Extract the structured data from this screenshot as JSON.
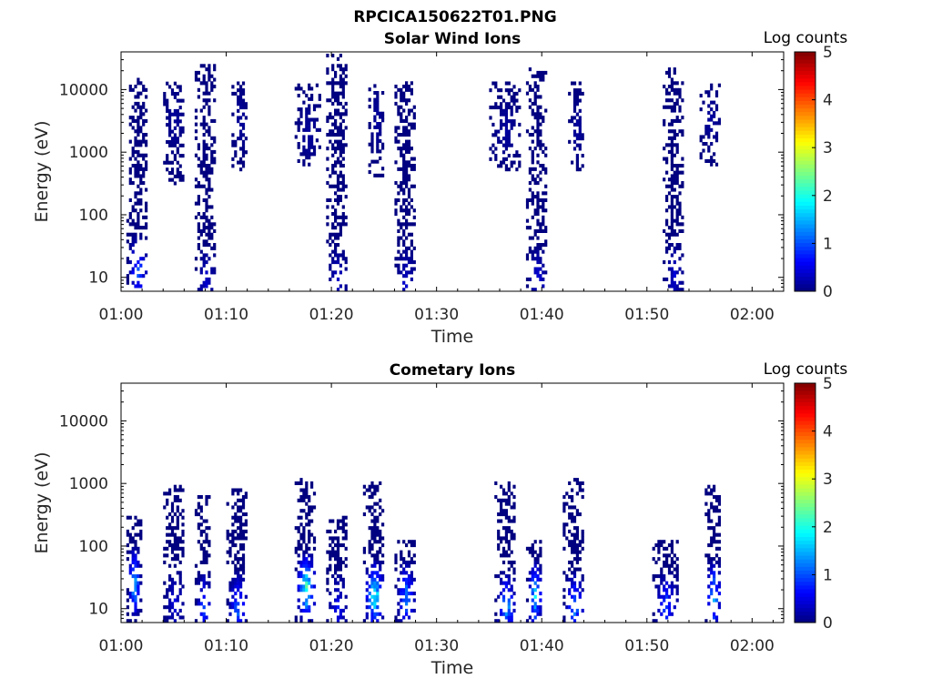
{
  "figure_title": "RPCICA150622T01.PNG",
  "chart_data": [
    {
      "type": "heatmap",
      "title": "Solar Wind Ions",
      "xlabel": "Time",
      "ylabel": "Energy (eV)",
      "x_ticks": [
        "01:00",
        "01:10",
        "01:20",
        "01:30",
        "01:40",
        "01:50",
        "02:00"
      ],
      "x_range": [
        "01:00",
        "02:03"
      ],
      "y_ticks": [
        "10",
        "100",
        "1000",
        "10000"
      ],
      "y_scale": "log",
      "y_range": [
        6,
        40000
      ],
      "colorbar": {
        "label": "Log counts",
        "ticks": [
          "0",
          "1",
          "2",
          "3",
          "4",
          "5"
        ],
        "range": [
          0,
          5
        ],
        "colormap": "jet"
      },
      "bursts": [
        {
          "t_start": 0.5,
          "t_end": 2.5,
          "e_min": 6,
          "e_max": 15000,
          "peak_log_counts": 1.3,
          "peak_energy": 12
        },
        {
          "t_start": 4.0,
          "t_end": 6.0,
          "e_min": 300,
          "e_max": 12000,
          "peak_log_counts": 0.2,
          "peak_energy": 3000
        },
        {
          "t_start": 7.0,
          "t_end": 9.0,
          "e_min": 6,
          "e_max": 25000,
          "peak_log_counts": 0.5,
          "peak_energy": 8
        },
        {
          "t_start": 10.5,
          "t_end": 12.0,
          "e_min": 500,
          "e_max": 12000,
          "peak_log_counts": 0.2,
          "peak_energy": 3000
        },
        {
          "t_start": 16.5,
          "t_end": 19.0,
          "e_min": 600,
          "e_max": 12000,
          "peak_log_counts": 0.2,
          "peak_energy": 2000
        },
        {
          "t_start": 19.5,
          "t_end": 21.5,
          "e_min": 6,
          "e_max": 35000,
          "peak_log_counts": 0.5,
          "peak_energy": 8
        },
        {
          "t_start": 23.5,
          "t_end": 25.0,
          "e_min": 400,
          "e_max": 12000,
          "peak_log_counts": 0.2,
          "peak_energy": 3000
        },
        {
          "t_start": 26.0,
          "t_end": 28.0,
          "e_min": 6,
          "e_max": 12000,
          "peak_log_counts": 0.5,
          "peak_energy": 8
        },
        {
          "t_start": 35.0,
          "t_end": 38.0,
          "e_min": 500,
          "e_max": 12000,
          "peak_log_counts": 0.2,
          "peak_energy": 2000
        },
        {
          "t_start": 38.5,
          "t_end": 40.5,
          "e_min": 6,
          "e_max": 20000,
          "peak_log_counts": 0.6,
          "peak_energy": 8
        },
        {
          "t_start": 42.5,
          "t_end": 44.0,
          "e_min": 500,
          "e_max": 12000,
          "peak_log_counts": 0.2,
          "peak_energy": 2000
        },
        {
          "t_start": 51.5,
          "t_end": 53.5,
          "e_min": 6,
          "e_max": 20000,
          "peak_log_counts": 0.5,
          "peak_energy": 10
        },
        {
          "t_start": 55.0,
          "t_end": 57.0,
          "e_min": 600,
          "e_max": 12000,
          "peak_log_counts": 0.2,
          "peak_energy": 3000
        }
      ]
    },
    {
      "type": "heatmap",
      "title": "Cometary Ions",
      "xlabel": "Time",
      "ylabel": "Energy (eV)",
      "x_ticks": [
        "01:00",
        "01:10",
        "01:20",
        "01:30",
        "01:40",
        "01:50",
        "02:00"
      ],
      "x_range": [
        "01:00",
        "02:03"
      ],
      "y_ticks": [
        "10",
        "100",
        "1000",
        "10000"
      ],
      "y_scale": "log",
      "y_range": [
        6,
        40000
      ],
      "colorbar": {
        "label": "Log counts",
        "ticks": [
          "0",
          "1",
          "2",
          "3",
          "4",
          "5"
        ],
        "range": [
          0,
          5
        ],
        "colormap": "jet"
      },
      "bursts": [
        {
          "t_start": 0.5,
          "t_end": 1.8,
          "e_min": 6,
          "e_max": 300,
          "peak_log_counts": 2.4,
          "peak_energy": 25
        },
        {
          "t_start": 4.0,
          "t_end": 6.0,
          "e_min": 6,
          "e_max": 900,
          "peak_log_counts": 0.6,
          "peak_energy": 12
        },
        {
          "t_start": 7.0,
          "t_end": 8.5,
          "e_min": 6,
          "e_max": 600,
          "peak_log_counts": 1.3,
          "peak_energy": 10
        },
        {
          "t_start": 10.0,
          "t_end": 12.0,
          "e_min": 6,
          "e_max": 800,
          "peak_log_counts": 1.4,
          "peak_energy": 10
        },
        {
          "t_start": 16.5,
          "t_end": 18.5,
          "e_min": 6,
          "e_max": 1200,
          "peak_log_counts": 2.7,
          "peak_energy": 20
        },
        {
          "t_start": 19.5,
          "t_end": 21.5,
          "e_min": 6,
          "e_max": 300,
          "peak_log_counts": 0.8,
          "peak_energy": 10
        },
        {
          "t_start": 23.0,
          "t_end": 25.0,
          "e_min": 6,
          "e_max": 1000,
          "peak_log_counts": 2.6,
          "peak_energy": 15
        },
        {
          "t_start": 26.0,
          "t_end": 28.0,
          "e_min": 6,
          "e_max": 120,
          "peak_log_counts": 1.6,
          "peak_energy": 15
        },
        {
          "t_start": 35.5,
          "t_end": 37.5,
          "e_min": 6,
          "e_max": 1000,
          "peak_log_counts": 1.9,
          "peak_energy": 10
        },
        {
          "t_start": 38.5,
          "t_end": 40.0,
          "e_min": 6,
          "e_max": 120,
          "peak_log_counts": 2.2,
          "peak_energy": 15
        },
        {
          "t_start": 42.0,
          "t_end": 44.0,
          "e_min": 6,
          "e_max": 1100,
          "peak_log_counts": 1.7,
          "peak_energy": 10
        },
        {
          "t_start": 50.5,
          "t_end": 53.0,
          "e_min": 6,
          "e_max": 120,
          "peak_log_counts": 1.3,
          "peak_energy": 10
        },
        {
          "t_start": 55.5,
          "t_end": 57.0,
          "e_min": 6,
          "e_max": 900,
          "peak_log_counts": 2.1,
          "peak_energy": 15
        }
      ]
    }
  ]
}
